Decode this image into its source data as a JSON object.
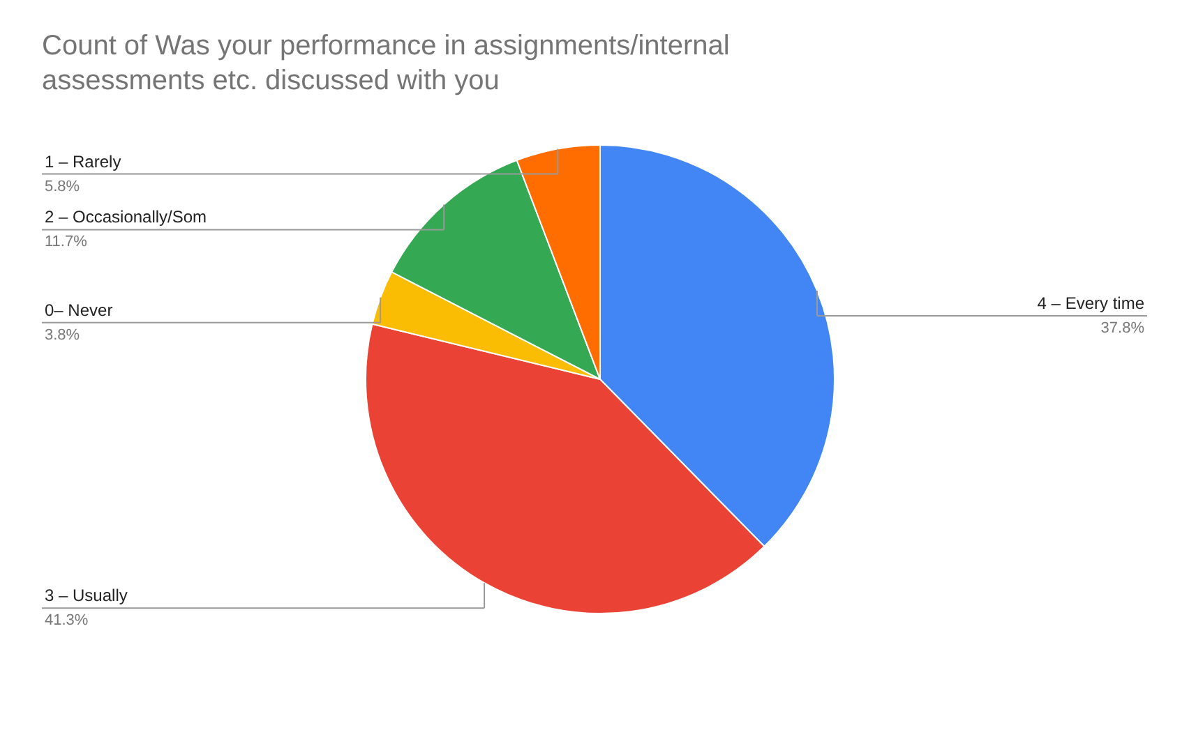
{
  "chart_data": {
    "type": "pie",
    "title": "Count of Was your performance in assignments/internal assessments etc.  discussed with you",
    "categories": [
      "4 – Every time",
      "3 – Usually",
      "0– Never",
      "2 – Occasionally/Som",
      "1 – Rarely"
    ],
    "values": [
      37.8,
      41.3,
      3.8,
      11.7,
      5.8
    ],
    "value_labels": [
      "37.8%",
      "41.3%",
      "3.8%",
      "11.7%",
      "5.8%"
    ],
    "colors": [
      "#4285f4",
      "#ea4335",
      "#fbbc04",
      "#34a853",
      "#ff6d01"
    ],
    "legend": false
  }
}
